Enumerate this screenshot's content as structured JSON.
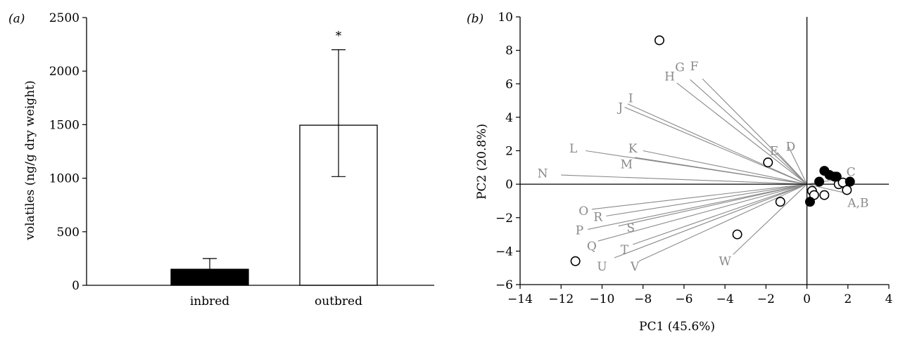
{
  "chart_data": [
    {
      "type": "bar",
      "panel_label": "(a)",
      "categories": [
        "inbred",
        "outbred"
      ],
      "values": [
        150,
        1495
      ],
      "error_upper": [
        250,
        2200
      ],
      "error_lower": [
        150,
        1015
      ],
      "fills": [
        "#000000",
        "#ffffff"
      ],
      "annotation": "*",
      "ylabel": "volatiles (ng/g dry weight)",
      "ylim": [
        0,
        2500
      ],
      "yticks": [
        0,
        500,
        1000,
        1500,
        2000,
        2500
      ],
      "grid": false
    },
    {
      "type": "scatter",
      "panel_label": "(b)",
      "xlabel": "PC1 (45.6%)",
      "ylabel": "PC2 (20.8%)",
      "xlim": [
        -14,
        4
      ],
      "ylim": [
        -6,
        10
      ],
      "xticks": [
        -14,
        -12,
        -10,
        -8,
        -6,
        -4,
        -2,
        0,
        2,
        4
      ],
      "yticks": [
        -6,
        -4,
        -2,
        0,
        2,
        4,
        6,
        8,
        10
      ],
      "grid": false,
      "series": [
        {
          "marker": "open-circle",
          "points": [
            {
              "x": -7.2,
              "y": 8.6
            },
            {
              "x": -1.9,
              "y": 1.3
            },
            {
              "x": -1.3,
              "y": -1.05
            },
            {
              "x": -3.4,
              "y": -3.0
            },
            {
              "x": -11.3,
              "y": -4.6
            },
            {
              "x": 0.25,
              "y": -0.4
            },
            {
              "x": 0.35,
              "y": -0.65
            },
            {
              "x": 0.85,
              "y": -0.65
            },
            {
              "x": 1.55,
              "y": 0.0
            },
            {
              "x": 1.75,
              "y": 0.1
            },
            {
              "x": 1.95,
              "y": -0.35
            }
          ]
        },
        {
          "marker": "filled-circle",
          "points": [
            {
              "x": 0.85,
              "y": 0.8
            },
            {
              "x": 1.1,
              "y": 0.55
            },
            {
              "x": 1.35,
              "y": 0.45
            },
            {
              "x": 1.45,
              "y": 0.45
            },
            {
              "x": 0.6,
              "y": 0.15
            },
            {
              "x": 2.1,
              "y": 0.15
            },
            {
              "x": 0.15,
              "y": -1.05
            }
          ]
        }
      ],
      "loadings": [
        {
          "label": "A,B",
          "x": 1.8,
          "y": -0.5,
          "lx": 2.5,
          "ly": -1.1
        },
        {
          "label": "C",
          "x": 1.8,
          "y": 0.35,
          "lx": 2.15,
          "ly": 0.75
        },
        {
          "label": "D",
          "x": -0.9,
          "y": 2.25,
          "lx": -0.8,
          "ly": 2.25
        },
        {
          "label": "E",
          "x": -1.45,
          "y": 1.9,
          "lx": -1.6,
          "ly": 2.0
        },
        {
          "label": "F",
          "x": -5.1,
          "y": 6.3,
          "lx": -5.5,
          "ly": 7.05
        },
        {
          "label": "G",
          "x": -5.7,
          "y": 6.25,
          "lx": -6.2,
          "ly": 7.0
        },
        {
          "label": "H",
          "x": -6.35,
          "y": 6.05,
          "lx": -6.7,
          "ly": 6.45
        },
        {
          "label": "I",
          "x": -8.75,
          "y": 4.8,
          "lx": -8.6,
          "ly": 5.15
        },
        {
          "label": "J",
          "x": -8.9,
          "y": 4.6,
          "lx": -9.1,
          "ly": 4.6
        },
        {
          "label": "K",
          "x": -8.0,
          "y": 2.0,
          "lx": -8.5,
          "ly": 2.15
        },
        {
          "label": "L",
          "x": -10.8,
          "y": 2.0,
          "lx": -11.4,
          "ly": 2.15
        },
        {
          "label": "M",
          "x": -8.4,
          "y": 1.6,
          "lx": -8.8,
          "ly": 1.2
        },
        {
          "label": "N",
          "x": -12.0,
          "y": 0.55,
          "lx": -12.9,
          "ly": 0.65
        },
        {
          "label": "O",
          "x": -10.5,
          "y": -1.5,
          "lx": -10.9,
          "ly": -1.6
        },
        {
          "label": "P",
          "x": -10.7,
          "y": -2.7,
          "lx": -11.1,
          "ly": -2.75
        },
        {
          "label": "Q",
          "x": -10.2,
          "y": -3.4,
          "lx": -10.5,
          "ly": -3.7
        },
        {
          "label": "R",
          "x": -9.8,
          "y": -1.9,
          "lx": -10.2,
          "ly": -1.95
        },
        {
          "label": "S",
          "x": -9.2,
          "y": -2.5,
          "lx": -8.6,
          "ly": -2.6
        },
        {
          "label": "T",
          "x": -8.5,
          "y": -3.6,
          "lx": -8.9,
          "ly": -3.9
        },
        {
          "label": "U",
          "x": -9.4,
          "y": -4.4,
          "lx": -10.0,
          "ly": -4.9
        },
        {
          "label": "V",
          "x": -8.2,
          "y": -4.6,
          "lx": -8.4,
          "ly": -4.9
        },
        {
          "label": "W",
          "x": -3.6,
          "y": -4.2,
          "lx": -4.0,
          "ly": -4.6
        }
      ]
    }
  ]
}
